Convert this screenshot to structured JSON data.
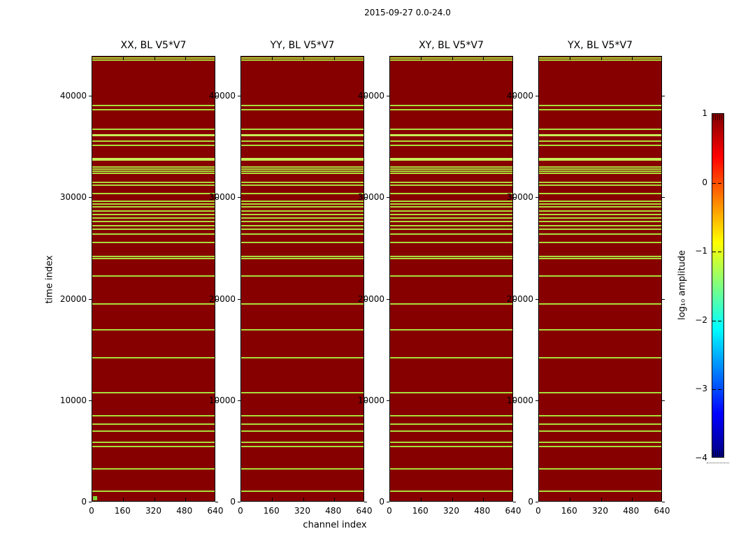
{
  "figure": {
    "suptitle": "2015-09-27 0.0-24.0",
    "background": "#ffffff"
  },
  "chart_data": {
    "type": "heatmap",
    "title": "2015-09-27 0.0-24.0",
    "panels": [
      {
        "title": "XX, BL V5*V7"
      },
      {
        "title": "YY, BL V5*V7"
      },
      {
        "title": "XY, BL V5*V7"
      },
      {
        "title": "YX, BL V5*V7"
      }
    ],
    "xlabel": "channel index",
    "ylabel": "time index",
    "x_tick_labels": [
      "0",
      "160",
      "320",
      "480",
      "640"
    ],
    "x_tick_values": [
      0,
      160,
      320,
      480,
      640
    ],
    "x_range": [
      0,
      640
    ],
    "y_tick_labels": [
      "0",
      "10000",
      "20000",
      "30000",
      "40000"
    ],
    "y_tick_values": [
      0,
      10000,
      20000,
      30000,
      40000
    ],
    "y_range": [
      0,
      43945
    ],
    "grid": false,
    "base_value_color": "#870000",
    "flag_line_color": "#a9dd3b",
    "flag_line_bright_color": "#c6ee58",
    "flagged_times": [
      {
        "t": 43840,
        "w": 2
      },
      {
        "t": 43600,
        "w": 2
      },
      {
        "t": 39120,
        "w": 2
      },
      {
        "t": 38700,
        "w": 2
      },
      {
        "t": 36780,
        "w": 2
      },
      {
        "t": 36230,
        "w": 3,
        "bright": true
      },
      {
        "t": 35610,
        "w": 2
      },
      {
        "t": 35200,
        "w": 2
      },
      {
        "t": 33850,
        "w": 4,
        "bright": true
      },
      {
        "t": 33060,
        "w": 2
      },
      {
        "t": 32850,
        "w": 2
      },
      {
        "t": 32640,
        "w": 2
      },
      {
        "t": 32440,
        "w": 2
      },
      {
        "t": 31540,
        "w": 2
      },
      {
        "t": 31270,
        "w": 2
      },
      {
        "t": 30440,
        "w": 2
      },
      {
        "t": 29690,
        "w": 2
      },
      {
        "t": 29400,
        "w": 2
      },
      {
        "t": 29130,
        "w": 2
      },
      {
        "t": 28720,
        "w": 2
      },
      {
        "t": 28370,
        "w": 2
      },
      {
        "t": 28030,
        "w": 2
      },
      {
        "t": 27690,
        "w": 2
      },
      {
        "t": 27270,
        "w": 2
      },
      {
        "t": 26930,
        "w": 2
      },
      {
        "t": 26450,
        "w": 2
      },
      {
        "t": 25620,
        "w": 2
      },
      {
        "t": 24240,
        "w": 2
      },
      {
        "t": 24030,
        "w": 2
      },
      {
        "t": 22310,
        "w": 2
      },
      {
        "t": 19560,
        "w": 2
      },
      {
        "t": 17010,
        "w": 2
      },
      {
        "t": 14260,
        "w": 2
      },
      {
        "t": 10810,
        "w": 2
      },
      {
        "t": 8540,
        "w": 2
      },
      {
        "t": 7710,
        "w": 2
      },
      {
        "t": 7020,
        "w": 2
      },
      {
        "t": 5920,
        "w": 2
      },
      {
        "t": 5510,
        "w": 2
      },
      {
        "t": 3310,
        "w": 2
      },
      {
        "t": 1100,
        "w": 2
      }
    ],
    "corner_marker": {
      "panel": 0,
      "color": "#7fd435",
      "channel": 0,
      "time": 0
    },
    "colorbar": {
      "label": "log₁₀ amplitude",
      "tick_labels": [
        "1",
        "0",
        "−1",
        "−2",
        "−3",
        "−4"
      ],
      "tick_values": [
        1,
        0,
        -1,
        -2,
        -3,
        -4
      ],
      "range": [
        -4,
        1
      ],
      "colormap": "jet",
      "gradient_top_to_bottom": [
        "#800000",
        "#ff0000",
        "#ffff00",
        "#00ffff",
        "#0000ff",
        "#000080"
      ]
    }
  }
}
